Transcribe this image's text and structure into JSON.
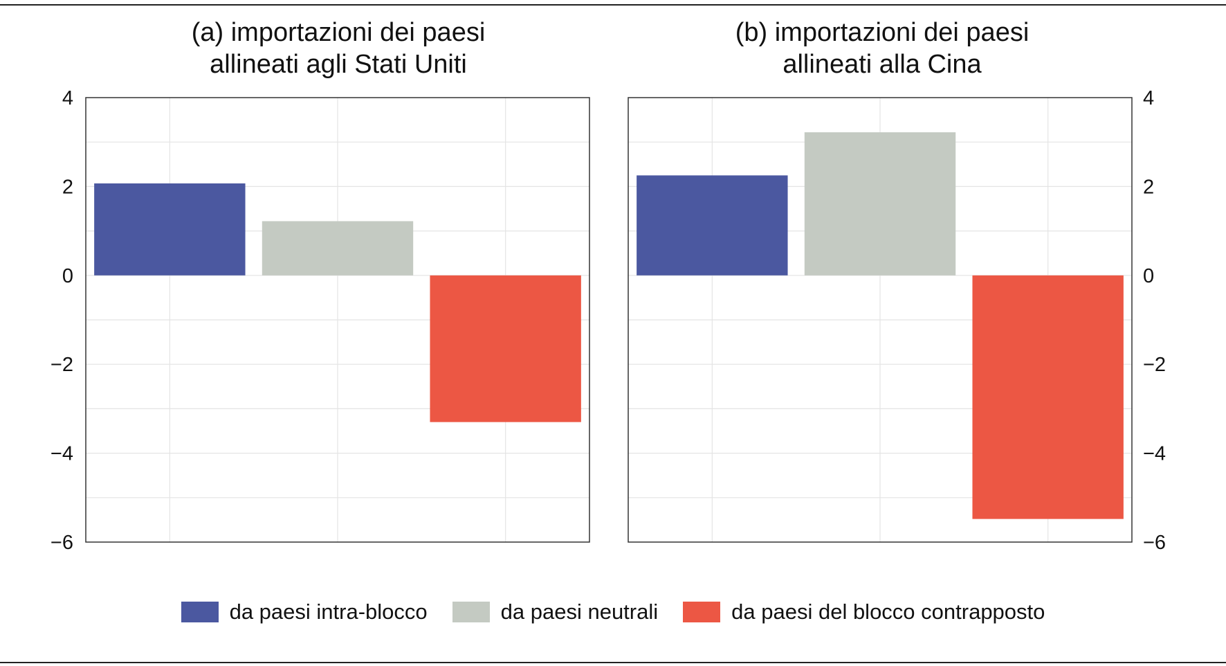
{
  "chart_data": [
    {
      "type": "bar",
      "title_lines": [
        "(a) importazioni dei paesi",
        "allineati agli Stati Uniti"
      ],
      "categories": [
        "da paesi intra-blocco",
        "da paesi neutrali",
        "da paesi del blocco contrapposto"
      ],
      "values": [
        2.07,
        1.22,
        -3.3
      ],
      "ylim": [
        -6,
        4
      ],
      "yticks": [
        4,
        2,
        0,
        -2,
        -4,
        -6
      ],
      "y_axis_side": "left",
      "grid": true
    },
    {
      "type": "bar",
      "title_lines": [
        "(b) importazioni dei paesi",
        "allineati alla Cina"
      ],
      "categories": [
        "da paesi intra-blocco",
        "da paesi neutrali",
        "da paesi del blocco contrapposto"
      ],
      "values": [
        2.25,
        3.22,
        -5.48
      ],
      "ylim": [
        -6,
        4
      ],
      "yticks": [
        4,
        2,
        0,
        -2,
        -4,
        -6
      ],
      "y_axis_side": "right",
      "grid": true
    }
  ],
  "legend": {
    "placement": "bottom",
    "items": [
      {
        "label": "da paesi intra-blocco",
        "color": "#4b58a0"
      },
      {
        "label": "da paesi neutrali",
        "color": "#c4cac2"
      },
      {
        "label": "da paesi del blocco contrapposto",
        "color": "#ec5744"
      }
    ]
  }
}
